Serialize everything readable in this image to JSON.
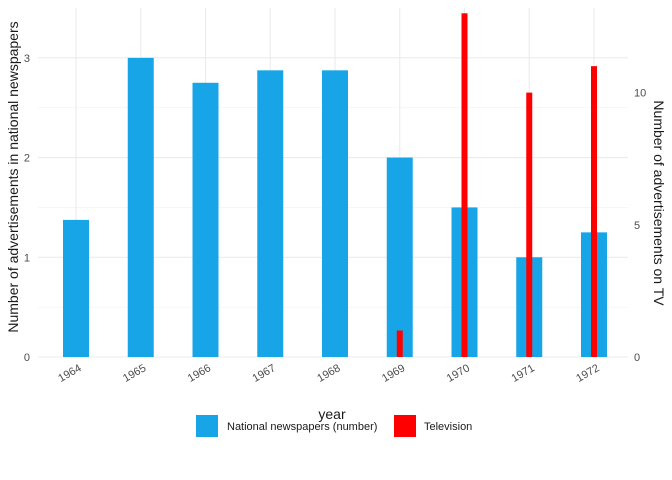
{
  "chart_data": {
    "type": "bar",
    "categories": [
      "1964",
      "1965",
      "1966",
      "1967",
      "1968",
      "1969",
      "1970",
      "1971",
      "1972"
    ],
    "series": [
      {
        "name": "National newspapers (number)",
        "axis": "left",
        "color": "#18A5E8",
        "values": [
          1.375,
          3.0,
          2.75,
          2.875,
          2.875,
          2.0,
          1.5,
          1.0,
          1.25
        ]
      },
      {
        "name": "Television",
        "axis": "right",
        "color": "#FF0000",
        "values": [
          null,
          null,
          null,
          null,
          null,
          1.0,
          13.0,
          10.0,
          11.0
        ]
      }
    ],
    "xlabel": "year",
    "ylabel_left": "Number of advertisements in national newspapers",
    "ylabel_right": "Number of advertisements on TV",
    "ylim_left": [
      0,
      3.5
    ],
    "yticks_left": [
      0,
      1,
      2,
      3
    ],
    "ylim_right": [
      0,
      13.2
    ],
    "yticks_right": [
      0,
      5,
      10
    ],
    "grid": true,
    "legend_position": "bottom"
  }
}
